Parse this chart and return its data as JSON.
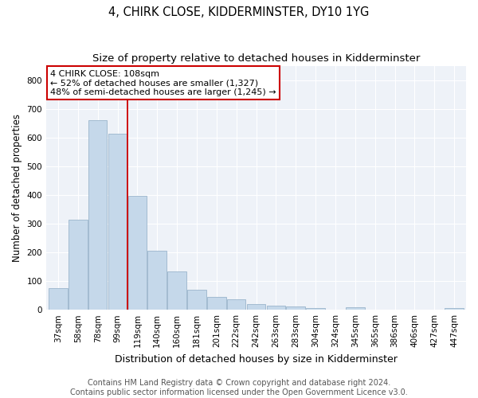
{
  "title": "4, CHIRK CLOSE, KIDDERMINSTER, DY10 1YG",
  "subtitle": "Size of property relative to detached houses in Kidderminster",
  "xlabel": "Distribution of detached houses by size in Kidderminster",
  "ylabel": "Number of detached properties",
  "categories": [
    "37sqm",
    "58sqm",
    "78sqm",
    "99sqm",
    "119sqm",
    "140sqm",
    "160sqm",
    "181sqm",
    "201sqm",
    "222sqm",
    "242sqm",
    "263sqm",
    "283sqm",
    "304sqm",
    "324sqm",
    "345sqm",
    "365sqm",
    "386sqm",
    "406sqm",
    "427sqm",
    "447sqm"
  ],
  "values": [
    75,
    315,
    660,
    615,
    398,
    205,
    135,
    70,
    45,
    37,
    20,
    15,
    12,
    5,
    0,
    8,
    0,
    0,
    0,
    0,
    7
  ],
  "bar_color": "#c5d8ea",
  "bar_edge_color": "#9ab5cc",
  "red_line_x": 3.5,
  "annotation_text": "4 CHIRK CLOSE: 108sqm\n← 52% of detached houses are smaller (1,327)\n48% of semi-detached houses are larger (1,245) →",
  "annotation_box_color": "#ffffff",
  "annotation_box_edge": "#cc0000",
  "red_line_color": "#cc0000",
  "footer_line1": "Contains HM Land Registry data © Crown copyright and database right 2024.",
  "footer_line2": "Contains public sector information licensed under the Open Government Licence v3.0.",
  "ylim": [
    0,
    850
  ],
  "yticks": [
    0,
    100,
    200,
    300,
    400,
    500,
    600,
    700,
    800
  ],
  "title_fontsize": 10.5,
  "subtitle_fontsize": 9.5,
  "xlabel_fontsize": 9,
  "ylabel_fontsize": 8.5,
  "tick_fontsize": 7.5,
  "annotation_fontsize": 8,
  "footer_fontsize": 7,
  "background_color": "#eef2f8"
}
